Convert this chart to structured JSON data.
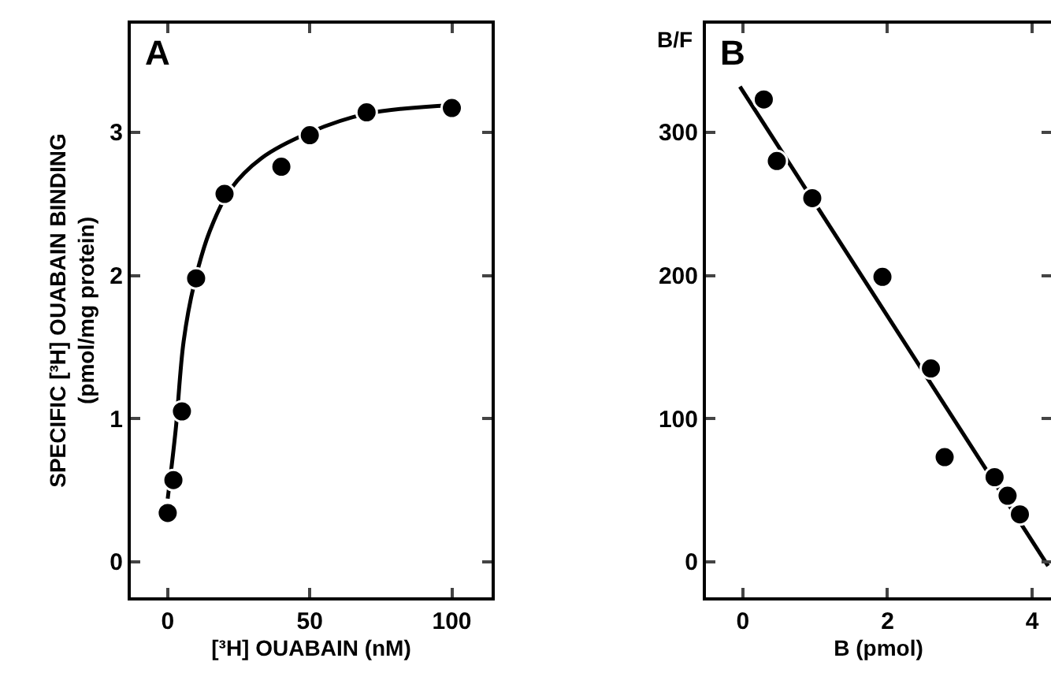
{
  "chart_data": [
    {
      "type": "scatter",
      "annotations": [
        {
          "text": "A"
        }
      ],
      "xlabel": "[³H] OUABAIN (nM)",
      "ylabel": "SPECIFIC [³H] OUABAIN BINDING\n(pmol/mg protein)",
      "xlim": [
        -13,
        114
      ],
      "ylim": [
        -0.25,
        3.76
      ],
      "xticks": [
        0,
        50,
        100
      ],
      "yticks": [
        0,
        1,
        2,
        3
      ],
      "grid": false,
      "series": [
        {
          "type": "line",
          "marker": "none",
          "color": "#000000",
          "line_style": "solid",
          "x": [
            0,
            2.8,
            5.6,
            9.3,
            14.8,
            22,
            33,
            50,
            70,
            100
          ],
          "values": [
            0.44,
            0.92,
            1.54,
            1.94,
            2.31,
            2.6,
            2.82,
            3.0,
            3.13,
            3.19
          ]
        },
        {
          "marker": "circle",
          "color": "#000000",
          "x": [
            0,
            2,
            5,
            10,
            20,
            40,
            50,
            70,
            100
          ],
          "values": [
            0.34,
            0.57,
            1.05,
            1.98,
            2.57,
            2.76,
            2.98,
            3.14,
            3.17
          ]
        }
      ]
    },
    {
      "type": "scatter",
      "annotations": [
        {
          "text": "B"
        }
      ],
      "xlabel": "B (pmol)",
      "ylabel": "B/F",
      "xlim": [
        -0.51,
        4.26
      ],
      "ylim": [
        -25,
        376
      ],
      "xticks": [
        0,
        2,
        4
      ],
      "yticks": [
        0,
        100,
        200,
        300
      ],
      "grid": false,
      "series": [
        {
          "type": "line",
          "marker": "none",
          "color": "#000000",
          "line_style": "solid",
          "x": [
            -0.04,
            4.22
          ],
          "values": [
            332,
            -3
          ]
        },
        {
          "marker": "circle",
          "color": "#000000",
          "x": [
            0.29,
            0.47,
            0.96,
            1.93,
            2.6,
            2.79,
            3.48,
            3.66,
            3.83
          ],
          "values": [
            323,
            280,
            254,
            199,
            135,
            73,
            59,
            46,
            33
          ]
        }
      ]
    }
  ]
}
